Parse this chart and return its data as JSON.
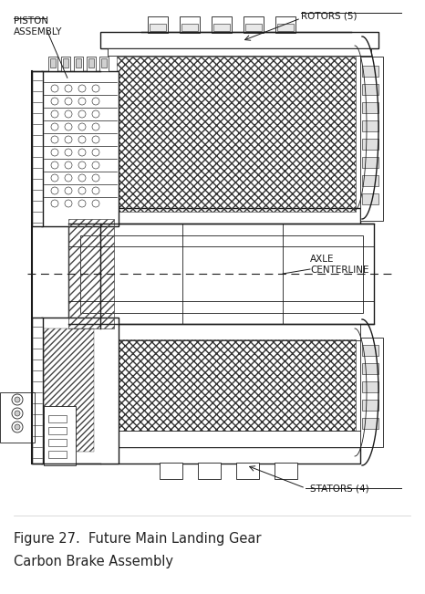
{
  "title_line1": "Figure 27.  Future Main Landing Gear",
  "title_line2": "Carbon Brake Assembly",
  "label_piston": "PISTON\nASSEMBLY",
  "label_rotors": "ROTORS (5)",
  "label_axle": "AXLE\nCENTERLINE",
  "label_stators": "STATORS (4)",
  "bg_color": "#ffffff",
  "line_color": "#1a1a1a",
  "fig_width": 4.66,
  "fig_height": 6.51,
  "dpi": 100,
  "title_fontsize": 10.5,
  "label_fontsize": 7.5,
  "annotation_fontsize": 7.5
}
